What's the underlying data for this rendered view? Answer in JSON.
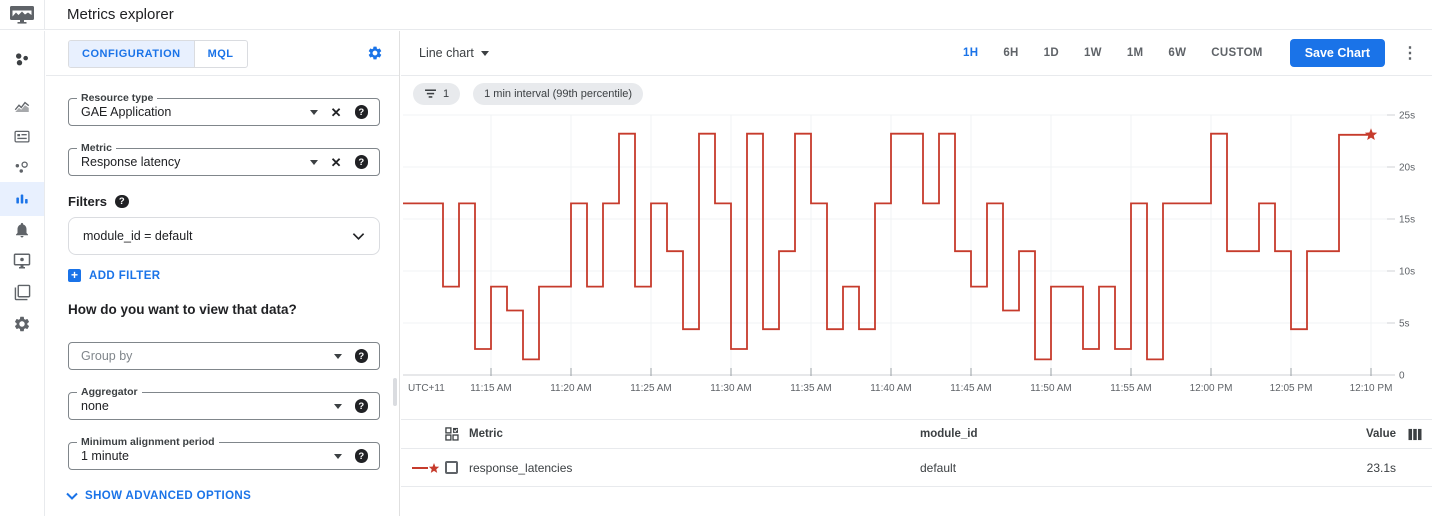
{
  "header": {
    "title": "Metrics explorer"
  },
  "sidebar": {
    "items": [
      {
        "name": "overview",
        "icon": "workspaces-icon",
        "selected": false
      },
      {
        "name": "dashboards",
        "icon": "area-chart-icon",
        "selected": false
      },
      {
        "name": "services",
        "icon": "dashboard-panel-icon",
        "selected": false
      },
      {
        "name": "service-monitoring",
        "icon": "hub-icon",
        "selected": false
      },
      {
        "name": "metrics-explorer",
        "icon": "equalizer-icon",
        "selected": true
      },
      {
        "name": "alerting",
        "icon": "bell-icon",
        "selected": false
      },
      {
        "name": "uptime-checks",
        "icon": "monitor-icon",
        "selected": false
      },
      {
        "name": "groups",
        "icon": "copy-icon",
        "selected": false
      },
      {
        "name": "settings",
        "icon": "gear-icon",
        "selected": false
      }
    ]
  },
  "config": {
    "tabs": [
      {
        "label": "CONFIGURATION",
        "selected": true
      },
      {
        "label": "MQL",
        "selected": false
      }
    ],
    "resource_type": {
      "label": "Resource type",
      "value": "GAE Application"
    },
    "metric": {
      "label": "Metric",
      "value": "Response latency"
    },
    "filters_label": "Filters",
    "filter_value": "module_id = default",
    "add_filter_label": "ADD FILTER",
    "view_question": "How do you want to view that data?",
    "group_by": {
      "placeholder": "Group by"
    },
    "aggregator": {
      "label": "Aggregator",
      "value": "none"
    },
    "min_alignment": {
      "label": "Minimum alignment period",
      "value": "1 minute"
    },
    "advanced_label": "SHOW ADVANCED OPTIONS"
  },
  "chart_panel": {
    "chart_type_label": "Line chart",
    "ranges": [
      "1H",
      "6H",
      "1D",
      "1W",
      "1M",
      "6W",
      "CUSTOM"
    ],
    "selected_range": "1H",
    "save_button": "Save Chart",
    "chips": {
      "filter_count": "1",
      "interval": "1 min interval (99th percentile)"
    }
  },
  "chart_data": {
    "type": "line",
    "subtype": "step",
    "tz_label": "UTC+11",
    "x_ticks": [
      {
        "label": "11:15 AM",
        "minute": 5
      },
      {
        "label": "11:20 AM",
        "minute": 10
      },
      {
        "label": "11:25 AM",
        "minute": 15
      },
      {
        "label": "11:30 AM",
        "minute": 20
      },
      {
        "label": "11:35 AM",
        "minute": 25
      },
      {
        "label": "11:40 AM",
        "minute": 30
      },
      {
        "label": "11:45 AM",
        "minute": 35
      },
      {
        "label": "11:50 AM",
        "minute": 40
      },
      {
        "label": "11:55 AM",
        "minute": 45
      },
      {
        "label": "12:00 PM",
        "minute": 50
      },
      {
        "label": "12:05 PM",
        "minute": 55
      },
      {
        "label": "12:10 PM",
        "minute": 60
      }
    ],
    "y_ticks": [
      {
        "label": "25s",
        "value": 25
      },
      {
        "label": "20s",
        "value": 20
      },
      {
        "label": "15s",
        "value": 15
      },
      {
        "label": "10s",
        "value": 10
      },
      {
        "label": "5s",
        "value": 5
      },
      {
        "label": "0",
        "value": 0
      }
    ],
    "ylim": [
      0,
      26
    ],
    "grid": true,
    "legend_position": "table-below",
    "series": [
      {
        "name": "response_latencies",
        "color": "#c63b2c",
        "start": "11:10 AM",
        "interval_minutes": 1,
        "unit": "s",
        "end_marker": "star",
        "values": [
          16.5,
          16.5,
          8.5,
          16.5,
          2.5,
          8.5,
          6.2,
          1.5,
          8.5,
          8.5,
          16.5,
          8.5,
          16.5,
          23.2,
          8.5,
          16.5,
          11.9,
          4.4,
          23.2,
          16.5,
          2.5,
          23.2,
          4.4,
          11.9,
          23.2,
          16.5,
          4.4,
          8.5,
          4.4,
          16.5,
          23.2,
          23.2,
          16.5,
          23.2,
          11.9,
          8.5,
          16.5,
          6.2,
          11.9,
          1.5,
          8.5,
          8.5,
          2.5,
          8.5,
          2.5,
          16.5,
          1.5,
          16.5,
          16.5,
          16.5,
          23.2,
          11.9,
          11.9,
          16.5,
          11.9,
          4.4,
          11.9,
          11.9,
          23.1,
          23.1,
          23.1
        ]
      }
    ]
  },
  "table": {
    "columns": [
      "Metric",
      "module_id",
      "Value"
    ],
    "rows": [
      {
        "metric": "response_latencies",
        "module_id": "default",
        "value": "23.1s"
      }
    ]
  },
  "icons": {
    "help": "?",
    "clear": "✕",
    "more": "⋮",
    "plus": "+"
  },
  "colors": {
    "accent": "#1a73e8",
    "line_red": "#c63b2c",
    "chip_bg": "#e8eaed",
    "selected_tab_bg": "#e8f0fe",
    "border": "#e8eaed"
  }
}
